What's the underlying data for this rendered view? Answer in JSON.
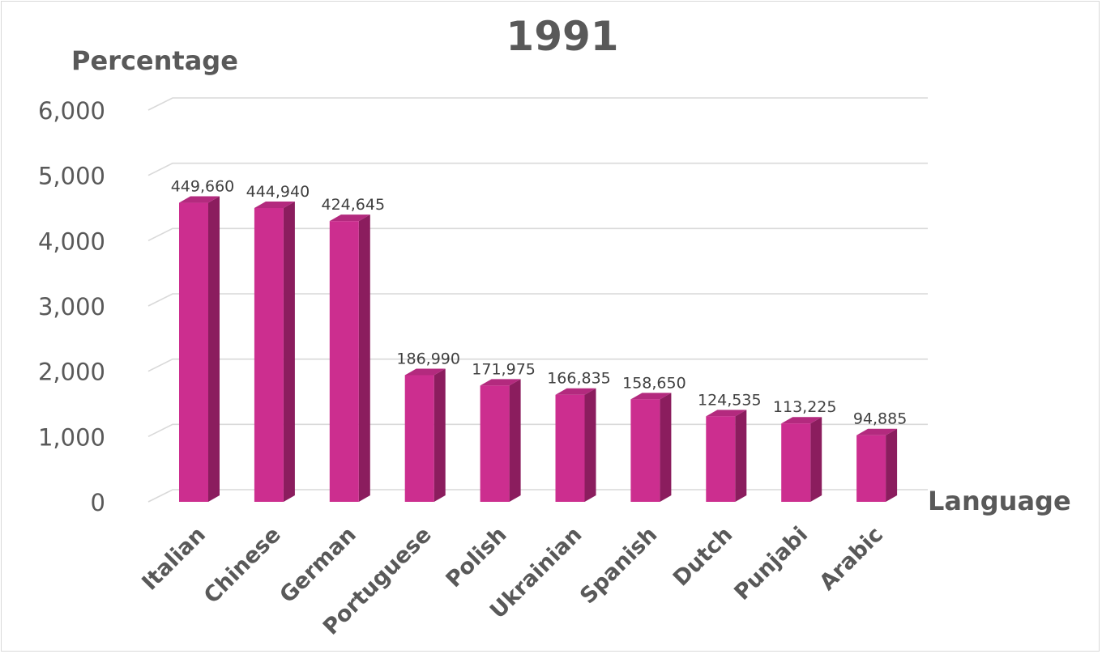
{
  "chart_data": {
    "type": "bar",
    "title": "1991",
    "ylabel": "Percentage",
    "xlabel": "Language",
    "categories": [
      "Italian",
      "Chinese",
      "German",
      "Portuguese",
      "Polish",
      "Ukrainian",
      "Spanish",
      "Dutch",
      "Punjabi",
      "Arabic"
    ],
    "values": [
      4580,
      4500,
      4300,
      1940,
      1780,
      1640,
      1570,
      1310,
      1200,
      1020
    ],
    "data_labels": [
      "449,660",
      "444,940",
      "424,645",
      "186,990",
      "171,975",
      "166,835",
      "158,650",
      "124,535",
      "113,225",
      "94,885"
    ],
    "ylim": [
      0,
      6000
    ],
    "yticks": [
      0,
      1000,
      2000,
      3000,
      4000,
      5000,
      6000
    ],
    "ytick_labels": [
      "0",
      "1,000",
      "2,000",
      "3,000",
      "4,000",
      "5,000",
      "6,000"
    ],
    "grid": true,
    "legend": "none",
    "colors": {
      "bar_front": "#cc2e8f",
      "bar_side": "#8b1d5e",
      "bar_top": "#b32a7e",
      "grid": "#d9d9d9",
      "text": "#595959"
    }
  }
}
